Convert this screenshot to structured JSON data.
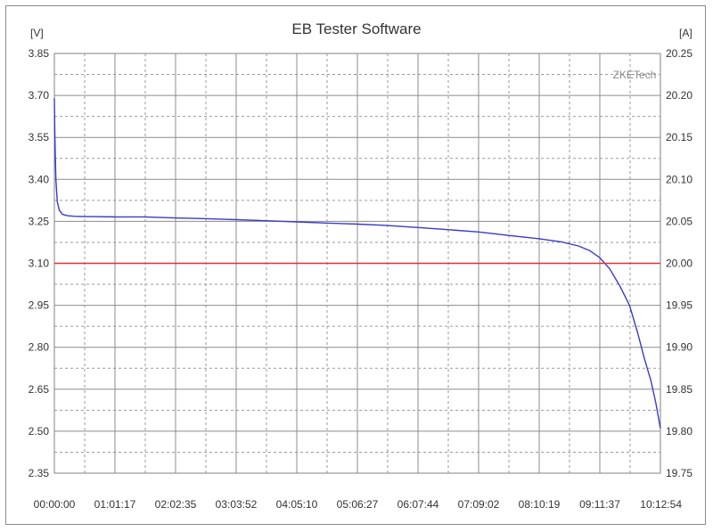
{
  "chart_data": {
    "type": "line",
    "title": "EB Tester Software",
    "watermark": "ZKETech",
    "y_left": {
      "unit": "[V]",
      "range": [
        2.35,
        3.85
      ],
      "ticks": [
        "3.85",
        "3.70",
        "3.55",
        "3.40",
        "3.25",
        "3.10",
        "2.95",
        "2.80",
        "2.65",
        "2.50",
        "2.35"
      ]
    },
    "y_right": {
      "unit": "[A]",
      "range": [
        19.75,
        20.25
      ],
      "ticks": [
        "20.25",
        "20.20",
        "20.15",
        "20.10",
        "20.05",
        "20.00",
        "19.95",
        "19.90",
        "19.85",
        "19.80",
        "19.75"
      ]
    },
    "x_axis": {
      "range_seconds": [
        0,
        36774
      ],
      "ticks": [
        "00:00:00",
        "01:01:17",
        "02:02:35",
        "03:03:52",
        "04:05:10",
        "05:06:27",
        "06:07:44",
        "07:09:02",
        "08:10:19",
        "09:11:37",
        "10:12:54"
      ]
    },
    "grid": true,
    "series": [
      {
        "axis": "left",
        "color": "#3a3ac8",
        "x_seconds": [
          0,
          30,
          90,
          180,
          300,
          500,
          800,
          1200,
          1800,
          2400,
          3677,
          5500,
          7355,
          9000,
          11032,
          13000,
          14710,
          16500,
          18387,
          20000,
          22064,
          23500,
          25742,
          27500,
          29419,
          30800,
          31800,
          32500,
          33097,
          33700,
          34300,
          34900,
          35400,
          35800,
          36200,
          36500,
          36774
        ],
        "values": [
          3.69,
          3.55,
          3.4,
          3.32,
          3.29,
          3.275,
          3.27,
          3.268,
          3.267,
          3.267,
          3.266,
          3.266,
          3.262,
          3.26,
          3.256,
          3.252,
          3.248,
          3.244,
          3.24,
          3.236,
          3.228,
          3.222,
          3.212,
          3.2,
          3.188,
          3.176,
          3.162,
          3.145,
          3.12,
          3.08,
          3.02,
          2.95,
          2.85,
          2.76,
          2.68,
          2.6,
          2.51
        ]
      },
      {
        "axis": "right",
        "color": "#e03030",
        "x_seconds": [
          0,
          36774
        ],
        "values": [
          20.0,
          20.0
        ]
      }
    ]
  }
}
